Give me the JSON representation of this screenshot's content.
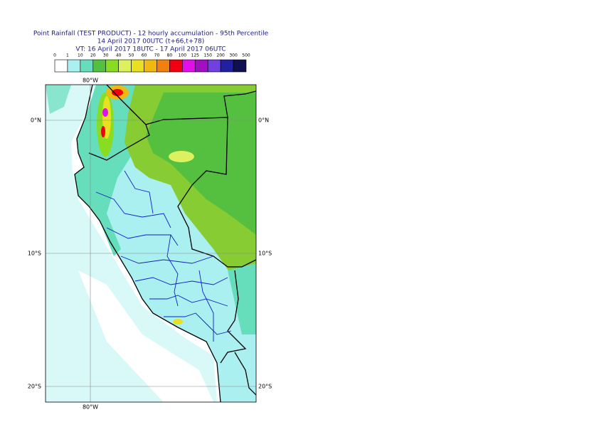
{
  "header": {
    "title": "Point Rainfall (TEST PRODUCT) - 12 hourly accumulation - 95th Percentile",
    "base_time": "14 April 2017 00UTC (t+66,t+78)",
    "valid_time": "VT: 16 April 2017 18UTC - 17 April 2017 06UTC"
  },
  "legend": {
    "thresholds": [
      0,
      1,
      10,
      20,
      30,
      40,
      50,
      60,
      70,
      80,
      100,
      125,
      150,
      200,
      300,
      500
    ],
    "colors": [
      "#ffffff",
      "#aaf0f0",
      "#66ddbb",
      "#55c040",
      "#88dd22",
      "#ddf060",
      "#e8e020",
      "#f0b810",
      "#f08010",
      "#f00010",
      "#e010e8",
      "#a010c0",
      "#7040e0",
      "#2020a0",
      "#101050"
    ]
  },
  "map": {
    "lon_labels": [
      "80°W"
    ],
    "lat_labels": [
      "0°N",
      "10°S",
      "20°S"
    ]
  }
}
